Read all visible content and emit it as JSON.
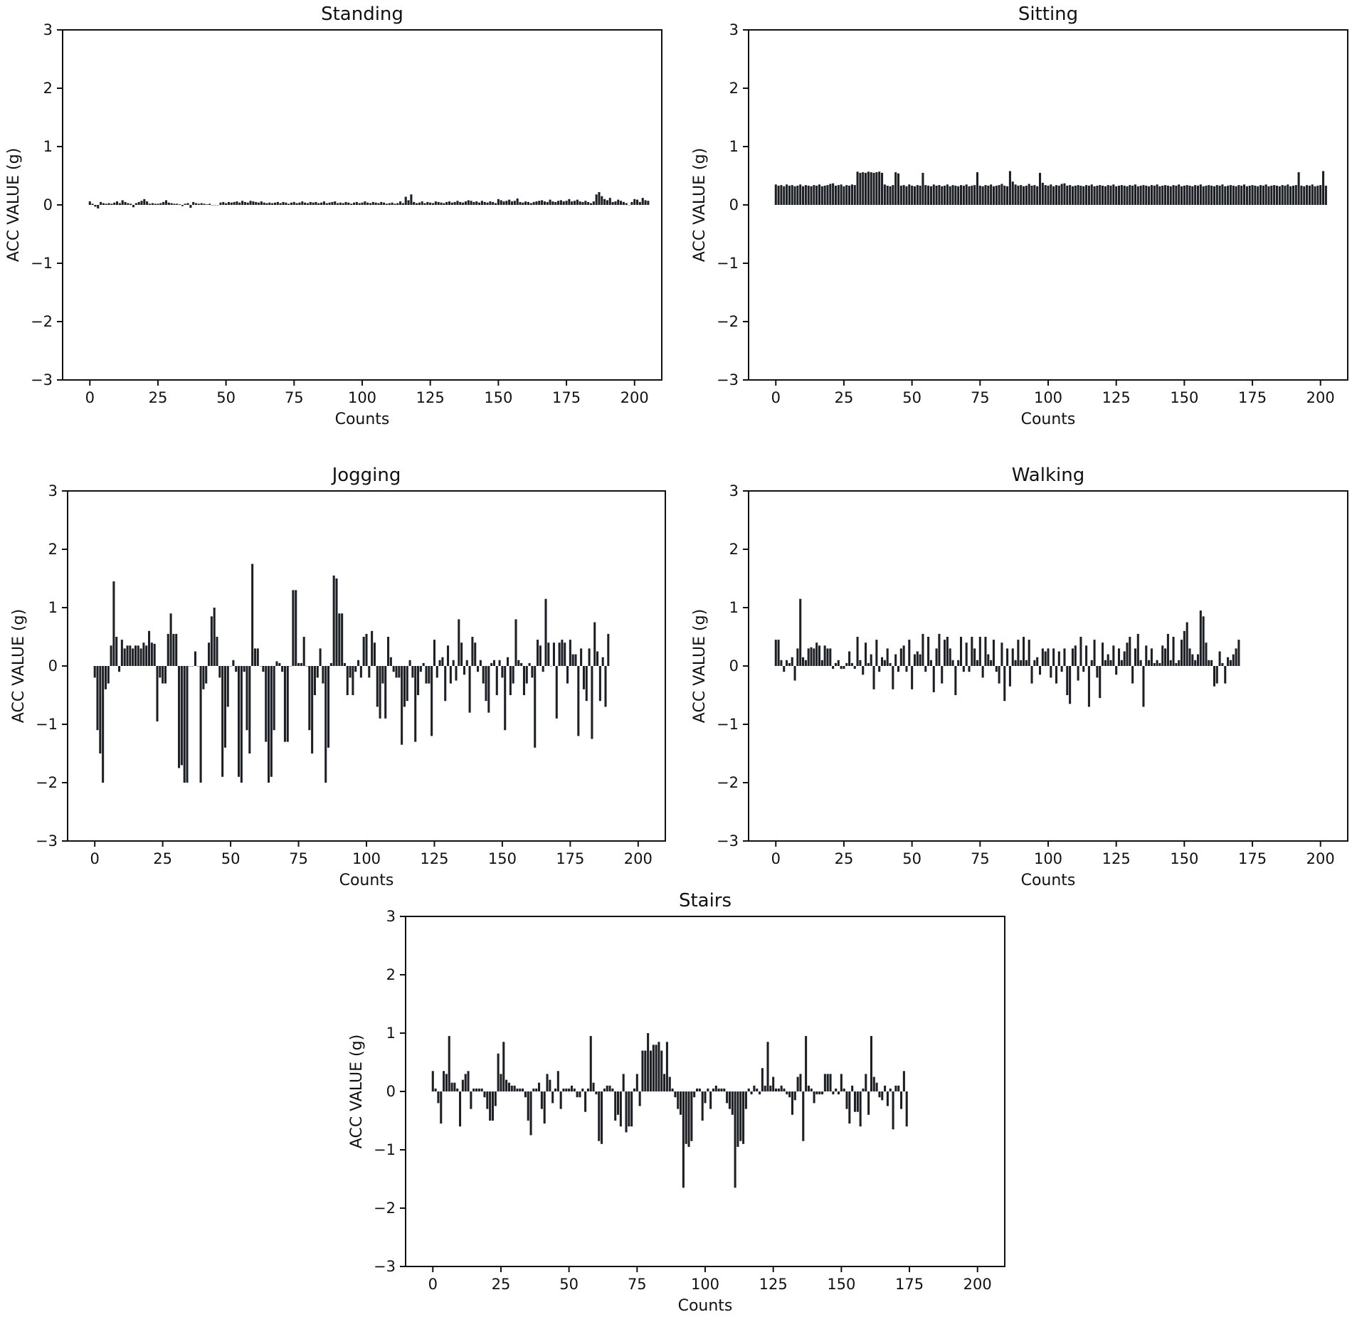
{
  "chart_data": [
    {
      "type": "bar",
      "title": "Standing",
      "xlabel": "Counts",
      "ylabel": "ACC VALUE (g)",
      "xlim": [
        -10,
        210
      ],
      "ylim": [
        -3,
        3
      ],
      "xticks": [
        0,
        25,
        50,
        75,
        100,
        125,
        150,
        175,
        200
      ],
      "yticks": [
        -3,
        -2,
        -1,
        0,
        1,
        2,
        3
      ],
      "grid": false,
      "x_start": 0,
      "values": [
        0.06,
        0.02,
        -0.03,
        -0.06,
        0.05,
        0.03,
        0.02,
        0.03,
        0.02,
        0.04,
        0.06,
        0.03,
        0.08,
        0.05,
        0.03,
        0.02,
        -0.04,
        0.03,
        0.05,
        0.07,
        0.1,
        0.06,
        0.02,
        0.03,
        0.02,
        0.02,
        0.03,
        0.05,
        0.08,
        0.04,
        0.03,
        0.02,
        0.02,
        0.01,
        -0.02,
        0.02,
        0.03,
        -0.05,
        0.05,
        0.03,
        0.02,
        0.03,
        0.02,
        0.01,
        0.02,
        0,
        0,
        0,
        0.04,
        0.05,
        0.03,
        0.05,
        0.04,
        0.05,
        0.06,
        0.04,
        0.07,
        0.05,
        0.04,
        0.07,
        0.06,
        0.05,
        0.04,
        0.06,
        0.04,
        0.03,
        0.04,
        0.03,
        0.04,
        0.05,
        0.03,
        0.05,
        0.04,
        0.02,
        0.04,
        0.05,
        0.03,
        0.04,
        0.06,
        0.04,
        0.03,
        0.05,
        0.04,
        0.05,
        0.03,
        0.04,
        0.06,
        0.03,
        0.04,
        0.05,
        0.06,
        0.03,
        0.04,
        0.03,
        0.05,
        0.04,
        0.02,
        0.04,
        0.05,
        0.03,
        0.04,
        0.06,
        0.04,
        0.03,
        0.05,
        0.04,
        0.03,
        0.05,
        0.04,
        0.02,
        0.03,
        0.04,
        0.02,
        0.03,
        0.06,
        0.03,
        0.14,
        0.08,
        0.18,
        0.05,
        0.03,
        0.04,
        0.06,
        0.03,
        0.05,
        0.04,
        0.03,
        0.06,
        0.05,
        0.04,
        0.03,
        0.05,
        0.06,
        0.04,
        0.05,
        0.07,
        0.05,
        0.04,
        0.06,
        0.08,
        0.07,
        0.05,
        0.06,
        0.04,
        0.07,
        0.05,
        0.04,
        0.06,
        0.05,
        0.03,
        0.1,
        0.08,
        0.06,
        0.07,
        0.09,
        0.06,
        0.07,
        0.11,
        0.05,
        0.04,
        0.06,
        0.05,
        0.03,
        0.05,
        0.06,
        0.07,
        0.08,
        0.06,
        0.05,
        0.09,
        0.06,
        0.05,
        0.07,
        0.08,
        0.06,
        0.07,
        0.1,
        0.06,
        0.07,
        0.09,
        0.06,
        0.05,
        0.07,
        0.05,
        0.03,
        0.06,
        0.18,
        0.22,
        0.15,
        0.1,
        0.08,
        0.12,
        0.05,
        0.06,
        0.09,
        0.07,
        0.05,
        0.03,
        0,
        0.05,
        0.1,
        0.09,
        0.05,
        0.12,
        0.08,
        0.07
      ],
      "colors": {
        "bar": "#1c1f24"
      }
    },
    {
      "type": "bar",
      "title": "Sitting",
      "xlabel": "Counts",
      "ylabel": "ACC VALUE (g)",
      "xlim": [
        -10,
        210
      ],
      "ylim": [
        -3,
        3
      ],
      "xticks": [
        0,
        25,
        50,
        75,
        100,
        125,
        150,
        175,
        200
      ],
      "yticks": [
        -3,
        -2,
        -1,
        0,
        1,
        2,
        3
      ],
      "grid": false,
      "x_start": 0,
      "values": [
        0.35,
        0.33,
        0.34,
        0.32,
        0.35,
        0.33,
        0.34,
        0.32,
        0.33,
        0.35,
        0.32,
        0.34,
        0.33,
        0.32,
        0.34,
        0.33,
        0.35,
        0.32,
        0.33,
        0.34,
        0.36,
        0.37,
        0.33,
        0.34,
        0.35,
        0.32,
        0.34,
        0.33,
        0.35,
        0.34,
        0.57,
        0.55,
        0.56,
        0.55,
        0.57,
        0.56,
        0.55,
        0.56,
        0.57,
        0.55,
        0.35,
        0.33,
        0.32,
        0.34,
        0.56,
        0.54,
        0.33,
        0.34,
        0.32,
        0.35,
        0.33,
        0.32,
        0.34,
        0.33,
        0.55,
        0.34,
        0.33,
        0.32,
        0.35,
        0.33,
        0.34,
        0.32,
        0.33,
        0.35,
        0.32,
        0.34,
        0.33,
        0.32,
        0.34,
        0.33,
        0.35,
        0.32,
        0.33,
        0.34,
        0.56,
        0.33,
        0.32,
        0.34,
        0.33,
        0.35,
        0.32,
        0.33,
        0.34,
        0.36,
        0.33,
        0.32,
        0.58,
        0.4,
        0.35,
        0.33,
        0.34,
        0.32,
        0.33,
        0.36,
        0.33,
        0.34,
        0.32,
        0.55,
        0.38,
        0.34,
        0.33,
        0.35,
        0.32,
        0.34,
        0.33,
        0.36,
        0.37,
        0.33,
        0.34,
        0.32,
        0.33,
        0.34,
        0.33,
        0.32,
        0.34,
        0.33,
        0.35,
        0.32,
        0.33,
        0.34,
        0.33,
        0.32,
        0.34,
        0.33,
        0.35,
        0.32,
        0.33,
        0.34,
        0.33,
        0.32,
        0.34,
        0.33,
        0.35,
        0.32,
        0.33,
        0.34,
        0.33,
        0.32,
        0.34,
        0.33,
        0.35,
        0.32,
        0.33,
        0.34,
        0.33,
        0.32,
        0.34,
        0.33,
        0.35,
        0.32,
        0.33,
        0.34,
        0.33,
        0.32,
        0.34,
        0.33,
        0.35,
        0.32,
        0.33,
        0.34,
        0.33,
        0.32,
        0.34,
        0.33,
        0.35,
        0.32,
        0.33,
        0.34,
        0.33,
        0.32,
        0.34,
        0.33,
        0.35,
        0.32,
        0.33,
        0.34,
        0.33,
        0.32,
        0.34,
        0.33,
        0.35,
        0.32,
        0.33,
        0.34,
        0.33,
        0.32,
        0.34,
        0.33,
        0.35,
        0.32,
        0.33,
        0.34,
        0.56,
        0.33,
        0.32,
        0.34,
        0.33,
        0.35,
        0.32,
        0.33,
        0.34,
        0.58,
        0.33
      ],
      "colors": {
        "bar": "#1c1f24"
      }
    },
    {
      "type": "bar",
      "title": "Jogging",
      "xlabel": "Counts",
      "ylabel": "ACC VALUE (g)",
      "xlim": [
        -10,
        210
      ],
      "ylim": [
        -3,
        3
      ],
      "xticks": [
        0,
        25,
        50,
        75,
        100,
        125,
        150,
        175,
        200
      ],
      "yticks": [
        -3,
        -2,
        -1,
        0,
        1,
        2,
        3
      ],
      "grid": false,
      "x_start": 0,
      "values": [
        -0.2,
        -1.1,
        -1.5,
        -2.0,
        -0.4,
        -0.3,
        0.35,
        1.45,
        0.5,
        -0.1,
        0.45,
        0.3,
        0.35,
        0.35,
        0.3,
        0.35,
        0.35,
        0.3,
        0.4,
        0.35,
        0.6,
        0.4,
        0.38,
        -0.95,
        -0.2,
        -0.3,
        -0.3,
        0.55,
        0.9,
        0.55,
        0.55,
        -1.75,
        -1.7,
        -2.0,
        -2.0,
        0,
        0,
        0.25,
        0,
        -2.0,
        -0.4,
        -0.3,
        0.4,
        0.85,
        1.0,
        0.5,
        -0.2,
        -1.9,
        -1.4,
        -0.7,
        0,
        0.1,
        -0.1,
        -1.9,
        -2.0,
        -0.1,
        -1.1,
        -1.5,
        1.75,
        0.3,
        0.3,
        0,
        -0.1,
        -1.3,
        -2.0,
        -1.9,
        -1.1,
        0.08,
        0.05,
        -0.1,
        -1.3,
        -1.3,
        0,
        1.3,
        1.3,
        0.05,
        0.05,
        0.5,
        0,
        -1.1,
        -1.5,
        -0.5,
        -0.2,
        0.3,
        -0.3,
        -2.0,
        -1.4,
        0.05,
        1.55,
        1.5,
        0.9,
        0.9,
        0.05,
        -0.5,
        -0.2,
        -0.5,
        -0.1,
        0.1,
        -0.2,
        0.5,
        0.55,
        -0.2,
        0.6,
        0.4,
        -0.7,
        -0.9,
        -0.3,
        -0.9,
        0.5,
        0.15,
        -0.1,
        -0.2,
        -0.2,
        -1.35,
        -0.7,
        -0.6,
        0.1,
        -0.2,
        -1.3,
        -0.5,
        -0.1,
        0.05,
        -0.3,
        -0.3,
        -1.2,
        0.45,
        -0.2,
        0.1,
        0.15,
        -0.6,
        0.35,
        -0.3,
        0.1,
        -0.25,
        0.8,
        0.4,
        -0.15,
        0.1,
        -0.8,
        0.5,
        0.4,
        -0.1,
        0.1,
        -0.3,
        -0.6,
        -0.8,
        0.05,
        0.1,
        -0.5,
        0.1,
        -0.2,
        -1.1,
        0.15,
        -0.5,
        -0.3,
        0.8,
        0.1,
        0.05,
        -0.5,
        -0.3,
        0.05,
        -0.2,
        -1.4,
        0.45,
        0.35,
        -0.1,
        1.15,
        0.4,
        0,
        0.4,
        -0.9,
        0.4,
        0.45,
        0.4,
        -0.3,
        0.45,
        0.2,
        0.2,
        -1.2,
        0.3,
        -0.4,
        -0.6,
        0.3,
        -1.25,
        0.75,
        0.25,
        -0.6,
        0.15,
        -0.7,
        0.55
      ],
      "colors": {
        "bar": "#1c1f24"
      }
    },
    {
      "type": "bar",
      "title": "Walking",
      "xlabel": "Counts",
      "ylabel": "ACC VALUE (g)",
      "xlim": [
        -10,
        210
      ],
      "ylim": [
        -3,
        3
      ],
      "xticks": [
        0,
        25,
        50,
        75,
        100,
        125,
        150,
        175,
        200
      ],
      "yticks": [
        -3,
        -2,
        -1,
        0,
        1,
        2,
        3
      ],
      "grid": false,
      "x_start": 0,
      "values": [
        0.45,
        0.45,
        0.1,
        -0.1,
        0.1,
        0.05,
        0.15,
        -0.25,
        0.3,
        1.15,
        0.15,
        0.1,
        0.3,
        0.32,
        0.3,
        0.4,
        0.35,
        0.1,
        0.35,
        0.3,
        0.3,
        -0.05,
        0.05,
        0.1,
        -0.05,
        -0.05,
        0.05,
        0.25,
        0.05,
        -0.05,
        0.5,
        0.1,
        -0.15,
        0.4,
        0.05,
        0.2,
        -0.4,
        0.45,
        -0.1,
        0.15,
        0.1,
        0.3,
        0.05,
        -0.4,
        0.2,
        -0.1,
        0.3,
        0.35,
        -0.1,
        0.45,
        -0.4,
        0.2,
        0.25,
        0.2,
        0.55,
        -0.1,
        0.5,
        0.1,
        -0.45,
        0.3,
        0.55,
        -0.3,
        0.45,
        0.5,
        0.3,
        0.1,
        -0.5,
        0.1,
        0.5,
        -0.1,
        0.4,
        -0.1,
        0.5,
        0.3,
        0.1,
        0.5,
        -0.2,
        0.5,
        0.2,
        0.1,
        0.45,
        -0.1,
        -0.3,
        0.4,
        -0.6,
        0.3,
        -0.35,
        0.3,
        0.1,
        0.45,
        0.1,
        0.5,
        0.1,
        0.45,
        -0.3,
        0.1,
        0.15,
        -0.15,
        0.3,
        0.25,
        0.3,
        -0.2,
        0.3,
        -0.3,
        0.25,
        -0.1,
        0.3,
        -0.5,
        -0.65,
        0.3,
        0.35,
        -0.25,
        0.5,
        -0.1,
        0.35,
        -0.7,
        0.1,
        0.45,
        -0.2,
        -0.55,
        0.4,
        0.1,
        0.2,
        0.1,
        0.35,
        -0.15,
        0.3,
        0.1,
        0.25,
        0.4,
        0.5,
        -0.3,
        0.3,
        0.55,
        0.1,
        -0.7,
        0.35,
        0.1,
        0.3,
        0.05,
        0.1,
        0.05,
        0.35,
        0.3,
        0.55,
        0.1,
        0.5,
        0.05,
        0.1,
        0.45,
        0.6,
        0.75,
        0.3,
        0.2,
        0.1,
        0.2,
        0.95,
        0.85,
        0.4,
        0.1,
        0.1,
        -0.35,
        -0.3,
        0.25,
        0.05,
        -0.3,
        0.15,
        0.1,
        0.2,
        0.3,
        0.45
      ],
      "colors": {
        "bar": "#1c1f24"
      }
    },
    {
      "type": "bar",
      "title": "Stairs",
      "xlabel": "Counts",
      "ylabel": "ACC VALUE (g)",
      "xlim": [
        -10,
        210
      ],
      "ylim": [
        -3,
        3
      ],
      "xticks": [
        0,
        25,
        50,
        75,
        100,
        125,
        150,
        175,
        200
      ],
      "yticks": [
        -3,
        -2,
        -1,
        0,
        1,
        2,
        3
      ],
      "grid": false,
      "x_start": 0,
      "values": [
        0.35,
        0.05,
        -0.2,
        -0.55,
        0.35,
        0.3,
        0.95,
        0.15,
        0.15,
        0.05,
        -0.6,
        0.2,
        0.3,
        0.35,
        -0.3,
        0.05,
        0.05,
        0.05,
        0.05,
        -0.1,
        -0.3,
        -0.5,
        -0.5,
        -0.25,
        0.65,
        0.3,
        0.85,
        0.2,
        0.15,
        0.1,
        0.1,
        0.05,
        0.05,
        0.05,
        -0.1,
        -0.5,
        -0.75,
        0.05,
        0.05,
        0.15,
        -0.3,
        -0.55,
        0.3,
        0.2,
        -0.2,
        0.05,
        0.35,
        -0.3,
        0.05,
        0.05,
        0.05,
        0.1,
        0.05,
        -0.1,
        -0.1,
        0.05,
        -0.35,
        0.05,
        0.95,
        0.15,
        -0.05,
        -0.85,
        -0.9,
        0.05,
        0.1,
        0.1,
        0.05,
        -0.5,
        -0.4,
        -0.6,
        0.3,
        -0.7,
        -0.6,
        -0.6,
        0.05,
        0.3,
        -0.25,
        0.7,
        0.7,
        1.0,
        0.7,
        0.8,
        0.8,
        0.85,
        0.7,
        0.3,
        0.85,
        0.25,
        0.05,
        -0.1,
        -0.3,
        -0.4,
        -1.65,
        -0.9,
        -0.95,
        -0.85,
        -0.1,
        0.05,
        0.05,
        -0.5,
        -0.2,
        0.05,
        -0.3,
        0.05,
        0.1,
        0.05,
        0.05,
        0.05,
        -0.2,
        -0.3,
        -0.4,
        -1.65,
        -0.95,
        -0.85,
        -0.9,
        -0.3,
        0.05,
        -0.05,
        0.1,
        0.05,
        -0.05,
        0.4,
        0.1,
        0.85,
        0.1,
        0.25,
        0.05,
        0.05,
        0.1,
        0.05,
        -0.05,
        -0.1,
        -0.4,
        -0.15,
        0.25,
        0.3,
        -0.85,
        0.95,
        0.1,
        0.05,
        -0.2,
        -0.05,
        -0.05,
        -0.05,
        0.3,
        0.3,
        0.3,
        -0.05,
        0.05,
        -0.05,
        0.3,
        0.05,
        -0.3,
        -0.55,
        0.1,
        -0.35,
        -0.35,
        -0.6,
        0.05,
        0.3,
        -0.4,
        0.95,
        0.25,
        0.15,
        -0.1,
        -0.15,
        0.1,
        -0.25,
        0.05,
        -0.65,
        0.1,
        0.1,
        -0.3,
        0.35,
        -0.6
      ],
      "colors": {
        "bar": "#1c1f24"
      }
    }
  ]
}
